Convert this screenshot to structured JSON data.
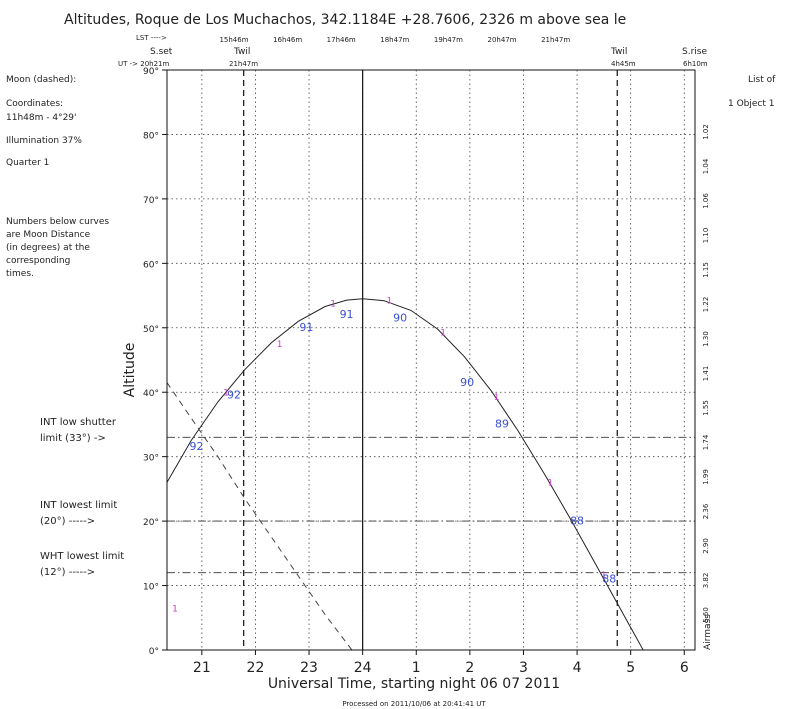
{
  "header": {
    "title": "Altitudes, Roque de Los Muchachos, 342.1184E +28.7606, 2326 m above sea le"
  },
  "top_labels": {
    "lst_arrow": "LST ---->",
    "ut_arrow": "UT -> 20h21m",
    "sunset": "S.set",
    "twil_evening": "Twil",
    "twil_evening_time": "21h47m",
    "twil_morning": "Twil",
    "twil_morning_time": "4h45m",
    "sunrise": "S.rise",
    "sunrise_time": "6h10m",
    "lst_ticks": [
      "15h46m",
      "16h46m",
      "17h46m",
      "18h47m",
      "19h47m",
      "20h47m",
      "21h47m"
    ]
  },
  "left_panel": {
    "moon": "Moon (dashed):",
    "coords_label": "Coordinates:",
    "coords_value": "11h48m  - 4°29'",
    "illumination": "Illumination  37%",
    "quarter": "Quarter   1",
    "note": [
      "Numbers below curves",
      "are Moon Distance",
      "(in degrees) at the",
      "corresponding",
      "times."
    ],
    "int_low_shutter": [
      "INT low shutter",
      "limit (33°) ->"
    ],
    "int_lowest": [
      "INT lowest limit",
      "(20°) ----->"
    ],
    "wht_lowest": [
      "WHT lowest limit",
      "(12°) ----->"
    ]
  },
  "right_panel": {
    "list_of": "List of",
    "object": "1 Object 1",
    "airmass_label": "Airmass",
    "airmass_ticks": [
      "1.02",
      "1.04",
      "1.06",
      "1.10",
      "1.15",
      "1.22",
      "1.30",
      "1.41",
      "1.55",
      "1.74",
      "1.99",
      "2.36",
      "2.90",
      "3.82",
      "5.60"
    ]
  },
  "footer": {
    "processed": "Processed on 2011/10/06 at 20:41:41 UT"
  },
  "colors": {
    "moon_distance": "#3b4fd6",
    "object_marker": "#c63cc6"
  },
  "chart_data": {
    "type": "line",
    "xlabel": "Universal Time, starting night 06 07 2011",
    "ylabel": "Altitude",
    "x_tick_labels": [
      "21",
      "22",
      "23",
      "24",
      "1",
      "2",
      "3",
      "4",
      "5",
      "6"
    ],
    "y_tick_labels": [
      "0°",
      "10°",
      "20°",
      "30°",
      "40°",
      "50°",
      "60°",
      "70°",
      "80°",
      "90°"
    ],
    "xlim": [
      20.35,
      30.2
    ],
    "ylim": [
      0,
      90
    ],
    "grid": true,
    "sunset_ut": 20.35,
    "twilight_evening_ut": 21.78,
    "twilight_morning_ut": 28.75,
    "sunrise_ut": 30.17,
    "limits": [
      {
        "altitude": 33
      },
      {
        "altitude": 20
      },
      {
        "altitude": 12
      }
    ],
    "series": [
      {
        "x": [
          20.35,
          20.8,
          21.3,
          21.8,
          22.3,
          22.8,
          23.3,
          23.7,
          24.0,
          24.4,
          24.9,
          25.4,
          25.9,
          26.4,
          26.9,
          27.4,
          27.9,
          28.4,
          28.9,
          29.4,
          29.8
        ],
        "y": [
          26,
          32.5,
          38.5,
          43.5,
          47.7,
          51.0,
          53.3,
          54.3,
          54.5,
          54.2,
          52.7,
          49.8,
          45.5,
          40.2,
          34.0,
          27.2,
          20.0,
          12.5,
          5.0,
          -2.5,
          -8
        ]
      },
      {
        "x": [
          20.35,
          20.8,
          21.3,
          21.8,
          22.3,
          22.8,
          23.3,
          23.8,
          24.0
        ],
        "y": [
          41.5,
          36.0,
          30.0,
          23.5,
          17.5,
          11.5,
          5.5,
          0,
          -2
        ]
      }
    ],
    "moon_distance_labels": [
      {
        "x": 20.9,
        "y": 31,
        "text": "92"
      },
      {
        "x": 21.6,
        "y": 39,
        "text": "92"
      },
      {
        "x": 22.95,
        "y": 49.5,
        "text": "91"
      },
      {
        "x": 23.7,
        "y": 51.5,
        "text": "91"
      },
      {
        "x": 24.7,
        "y": 51,
        "text": "90"
      },
      {
        "x": 25.95,
        "y": 41,
        "text": "90"
      },
      {
        "x": 26.6,
        "y": 34.5,
        "text": "89"
      },
      {
        "x": 28.0,
        "y": 19.5,
        "text": "88"
      },
      {
        "x": 28.6,
        "y": 10.5,
        "text": "88"
      }
    ],
    "object_markers": [
      {
        "x": 20.5,
        "y": 6,
        "text": "1"
      },
      {
        "x": 21.45,
        "y": 39.5,
        "text": "1"
      },
      {
        "x": 22.45,
        "y": 47,
        "text": "1"
      },
      {
        "x": 23.45,
        "y": 53.3,
        "text": "1"
      },
      {
        "x": 24.5,
        "y": 53.8,
        "text": "1"
      },
      {
        "x": 25.5,
        "y": 48.8,
        "text": "1"
      },
      {
        "x": 26.5,
        "y": 38.8,
        "text": "1"
      },
      {
        "x": 27.5,
        "y": 25.5,
        "text": "1"
      },
      {
        "x": 28.5,
        "y": 11.2,
        "text": "1"
      }
    ]
  }
}
